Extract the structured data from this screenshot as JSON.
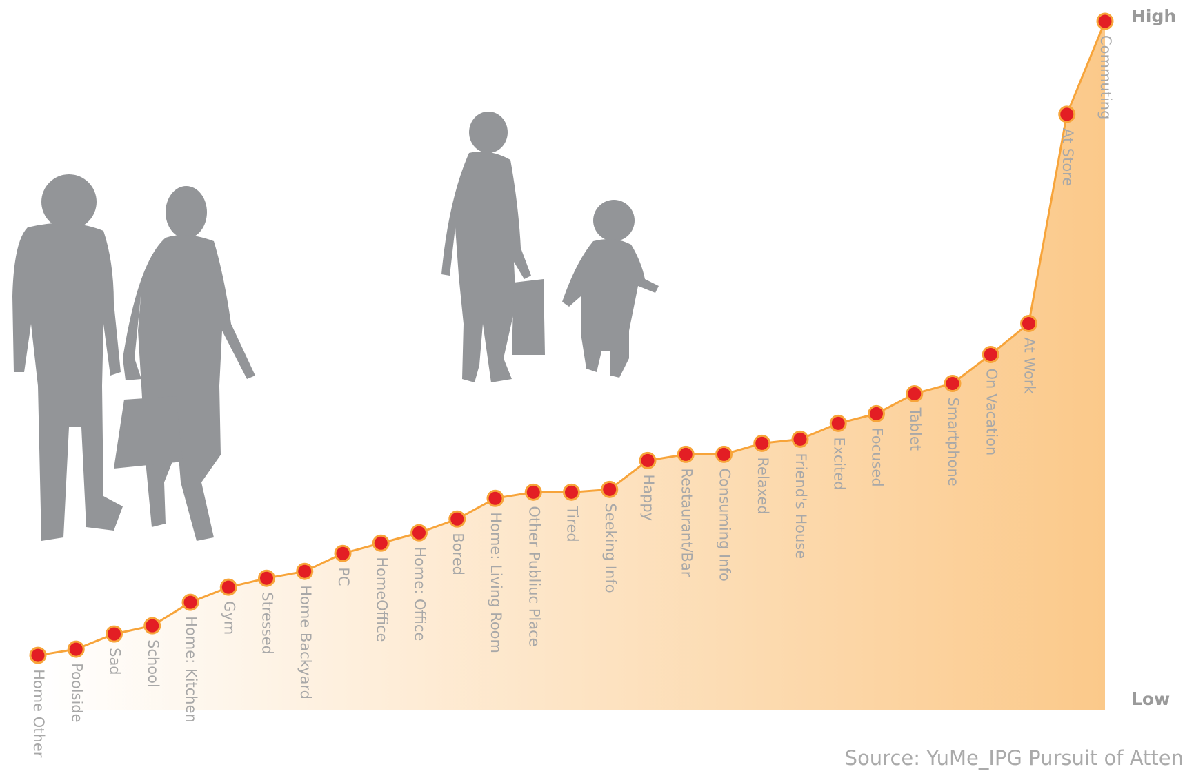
{
  "chart_data": {
    "type": "area",
    "categories": [
      "Home Other",
      "Poolside",
      "Sad",
      "School",
      "Home: Kitchen",
      "Gym",
      "Stressed",
      "Home Backyard",
      "PC",
      "HomeOffice",
      "Home: Office",
      "Bored",
      "Home: Living Room",
      "Other Publiuc Place",
      "Tired",
      "Seeking Info",
      "Happy",
      "Restaurant/Bar",
      "Consuming Info",
      "Relaxed",
      "Friend's House",
      "Excited",
      "Focused",
      "Tablet",
      "Smartphone",
      "On Vacation",
      "At Work",
      "At Store",
      "Commuting"
    ],
    "values": [
      7.9,
      8.8,
      11.0,
      12.2,
      15.6,
      17.8,
      19.1,
      20.1,
      22.7,
      24.2,
      25.7,
      27.7,
      30.7,
      31.6,
      31.6,
      32.0,
      36.2,
      37.1,
      37.1,
      38.7,
      39.3,
      41.6,
      43.0,
      45.9,
      47.4,
      51.6,
      56.1,
      86.5,
      100
    ],
    "ylim": [
      0,
      100
    ],
    "high_label": "High",
    "low_label": "Low",
    "source": "Source: YuMe_IPG Pursuit of Atten",
    "color": "#fbc98a",
    "line_color": "#f7a43a",
    "marker_color": "#e31e24"
  }
}
